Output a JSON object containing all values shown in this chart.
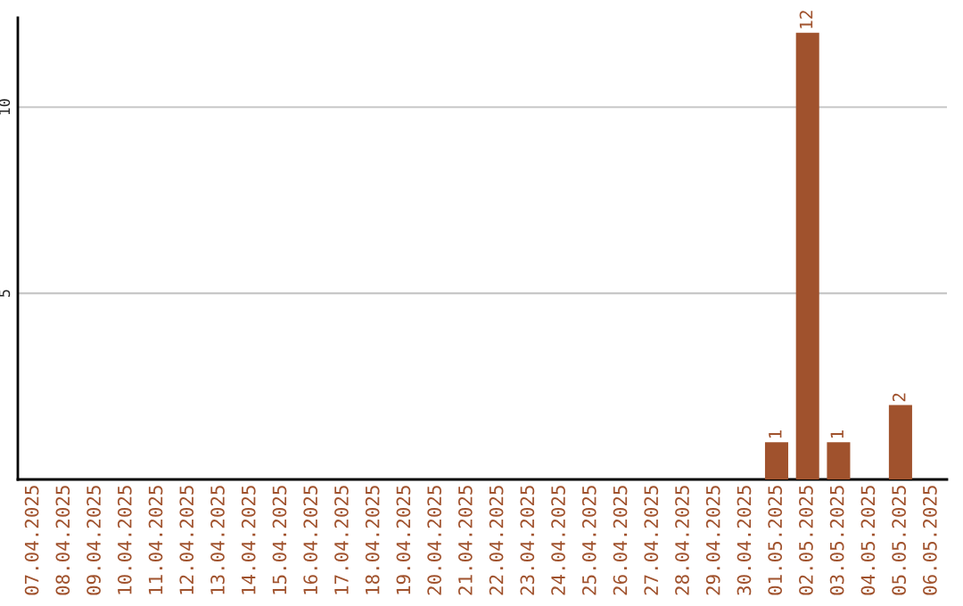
{
  "chart_data": {
    "type": "bar",
    "categories": [
      "07.04.2025",
      "08.04.2025",
      "09.04.2025",
      "10.04.2025",
      "11.04.2025",
      "12.04.2025",
      "13.04.2025",
      "14.04.2025",
      "15.04.2025",
      "16.04.2025",
      "17.04.2025",
      "18.04.2025",
      "19.04.2025",
      "20.04.2025",
      "21.04.2025",
      "22.04.2025",
      "23.04.2025",
      "24.04.2025",
      "25.04.2025",
      "26.04.2025",
      "27.04.2025",
      "28.04.2025",
      "29.04.2025",
      "30.04.2025",
      "01.05.2025",
      "02.05.2025",
      "03.05.2025",
      "04.05.2025",
      "05.05.2025",
      "06.05.2025"
    ],
    "values": [
      0,
      0,
      0,
      0,
      0,
      0,
      0,
      0,
      0,
      0,
      0,
      0,
      0,
      0,
      0,
      0,
      0,
      0,
      0,
      0,
      0,
      0,
      0,
      0,
      1,
      12,
      1,
      0,
      2,
      0
    ],
    "value_labels": [
      null,
      null,
      null,
      null,
      null,
      null,
      null,
      null,
      null,
      null,
      null,
      null,
      null,
      null,
      null,
      null,
      null,
      null,
      null,
      null,
      null,
      null,
      null,
      null,
      "1",
      "12",
      "1",
      null,
      "2",
      null
    ],
    "color": "#a0522d",
    "ylim": [
      0,
      12.4
    ],
    "yticks": [
      5,
      10
    ],
    "grid": "y"
  }
}
